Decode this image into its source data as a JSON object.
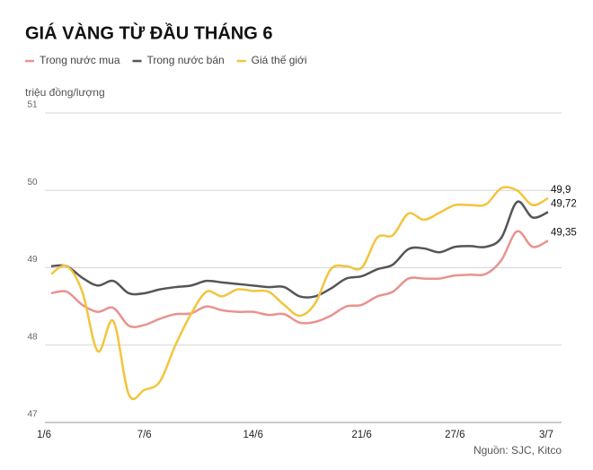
{
  "chart_data": {
    "type": "line",
    "title": "GIÁ VÀNG TỪ ĐẦU THÁNG 6",
    "ylabel": "triệu đồng/lượng",
    "source": "Nguồn: SJC, Kitco",
    "categories": [
      "1/6",
      null,
      null,
      null,
      null,
      null,
      "7/6",
      null,
      null,
      null,
      null,
      null,
      null,
      "14/6",
      null,
      null,
      null,
      null,
      null,
      null,
      "21/6",
      null,
      null,
      null,
      null,
      null,
      "27/6",
      null,
      null,
      null,
      null,
      null,
      "3/7"
    ],
    "series": [
      {
        "name": "Trong nước mua",
        "color": "#e8938f",
        "values": [
          48.67,
          48.69,
          48.52,
          48.43,
          48.48,
          48.25,
          48.26,
          48.34,
          48.4,
          48.41,
          48.5,
          48.45,
          48.43,
          48.43,
          48.39,
          48.4,
          48.29,
          48.3,
          48.38,
          48.5,
          48.52,
          48.63,
          48.69,
          48.86,
          48.86,
          48.86,
          48.9,
          48.91,
          48.92,
          49.1,
          49.47,
          49.27,
          49.35
        ],
        "value_labels": [
          null,
          null,
          null,
          null,
          null,
          null,
          null,
          null,
          null,
          null,
          null,
          null,
          null,
          null,
          null,
          null,
          null,
          null,
          null,
          null,
          null,
          null,
          null,
          null,
          null,
          null,
          null,
          null,
          null,
          null,
          null,
          null,
          "49,35"
        ]
      },
      {
        "name": "Trong nước bán",
        "color": "#555555",
        "values": [
          49.02,
          49.02,
          48.87,
          48.77,
          48.83,
          48.67,
          48.67,
          48.72,
          48.75,
          48.77,
          48.83,
          48.81,
          48.79,
          48.77,
          48.75,
          48.75,
          48.63,
          48.63,
          48.73,
          48.86,
          48.89,
          48.98,
          49.04,
          49.24,
          49.25,
          49.2,
          49.27,
          49.28,
          49.27,
          49.39,
          49.85,
          49.65,
          49.72
        ],
        "value_labels": [
          null,
          null,
          null,
          null,
          null,
          null,
          null,
          null,
          null,
          null,
          null,
          null,
          null,
          null,
          null,
          null,
          null,
          null,
          null,
          null,
          null,
          null,
          null,
          null,
          null,
          null,
          null,
          null,
          null,
          null,
          null,
          null,
          "49,72"
        ]
      },
      {
        "name": "Giá thế giới",
        "color": "#f2c53d",
        "values": [
          48.92,
          49.02,
          48.69,
          47.92,
          48.31,
          47.36,
          47.42,
          47.53,
          48.0,
          48.4,
          48.69,
          48.63,
          48.72,
          48.7,
          48.69,
          48.52,
          48.38,
          48.54,
          48.98,
          49.02,
          49.0,
          49.39,
          49.42,
          49.7,
          49.62,
          49.71,
          49.81,
          49.81,
          49.82,
          50.03,
          50.0,
          49.81,
          49.9
        ],
        "value_labels": [
          null,
          null,
          null,
          null,
          null,
          null,
          null,
          null,
          null,
          null,
          null,
          null,
          null,
          null,
          null,
          null,
          null,
          null,
          null,
          null,
          null,
          null,
          null,
          null,
          null,
          null,
          null,
          null,
          null,
          null,
          null,
          null,
          "49,9"
        ]
      }
    ],
    "ylim": [
      47,
      51
    ],
    "yticks": [
      47,
      48,
      49,
      50,
      51
    ],
    "grid": true
  }
}
